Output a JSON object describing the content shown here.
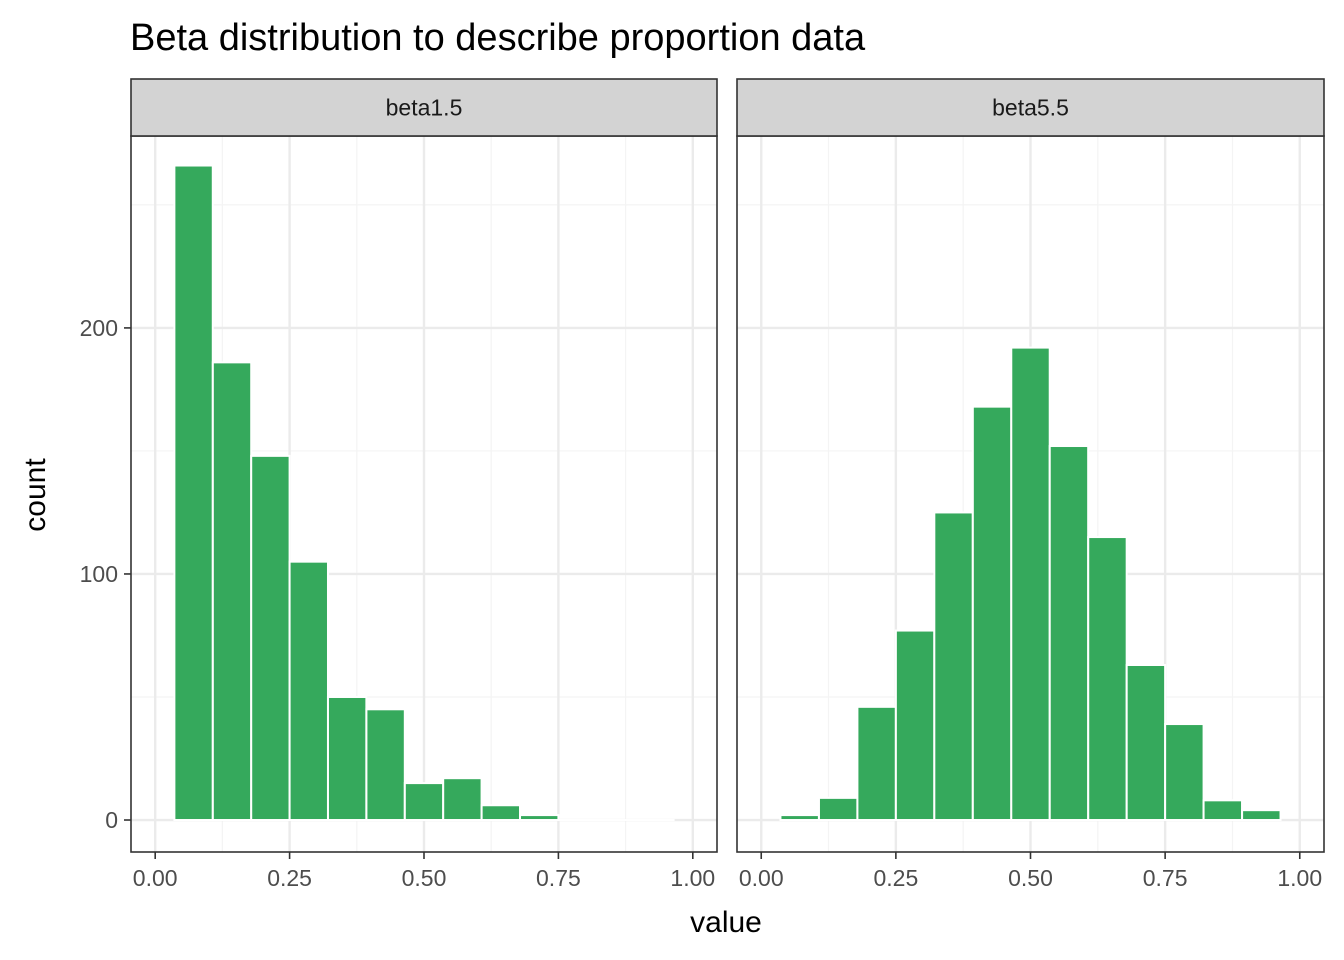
{
  "colors": {
    "bar_fill": "#35a95c",
    "bar_stroke": "#ffffff",
    "strip_fill": "#d3d3d3",
    "panel_border": "#333333",
    "grid_major": "#ebebeb",
    "grid_minor": "#f4f4f4"
  },
  "chart_data": {
    "type": "bar",
    "title": "Beta distribution to describe proportion data",
    "xlabel": "value",
    "ylabel": "count",
    "xlim": [
      -0.045,
      1.045
    ],
    "ylim": [
      -13,
      278
    ],
    "x_ticks": [
      0.0,
      0.25,
      0.5,
      0.75,
      1.0
    ],
    "x_tick_labels": [
      "0.00",
      "0.25",
      "0.50",
      "0.75",
      "1.00"
    ],
    "y_ticks": [
      0,
      100,
      200
    ],
    "y_tick_labels": [
      "0",
      "100",
      "200"
    ],
    "y_minor_ticks": [
      50,
      150,
      250
    ],
    "grid": true,
    "legend": "none",
    "bin_width": 0.0714,
    "panels": [
      {
        "strip_label": "beta1.5",
        "bins": [
          {
            "x": 0.0714,
            "count": 266
          },
          {
            "x": 0.1429,
            "count": 186
          },
          {
            "x": 0.2143,
            "count": 148
          },
          {
            "x": 0.2857,
            "count": 105
          },
          {
            "x": 0.3571,
            "count": 50
          },
          {
            "x": 0.4286,
            "count": 45
          },
          {
            "x": 0.5,
            "count": 15
          },
          {
            "x": 0.5714,
            "count": 17
          },
          {
            "x": 0.6429,
            "count": 6
          },
          {
            "x": 0.7143,
            "count": 2
          },
          {
            "x": 0.7857,
            "count": 0
          },
          {
            "x": 0.8571,
            "count": 0
          },
          {
            "x": 0.9286,
            "count": 0
          }
        ]
      },
      {
        "strip_label": "beta5.5",
        "bins": [
          {
            "x": 0.0714,
            "count": 2
          },
          {
            "x": 0.1429,
            "count": 9
          },
          {
            "x": 0.2143,
            "count": 46
          },
          {
            "x": 0.2857,
            "count": 77
          },
          {
            "x": 0.3571,
            "count": 125
          },
          {
            "x": 0.4286,
            "count": 168
          },
          {
            "x": 0.5,
            "count": 192
          },
          {
            "x": 0.5714,
            "count": 152
          },
          {
            "x": 0.6429,
            "count": 115
          },
          {
            "x": 0.7143,
            "count": 63
          },
          {
            "x": 0.7857,
            "count": 39
          },
          {
            "x": 0.8571,
            "count": 8
          },
          {
            "x": 0.9286,
            "count": 4
          }
        ]
      }
    ]
  }
}
